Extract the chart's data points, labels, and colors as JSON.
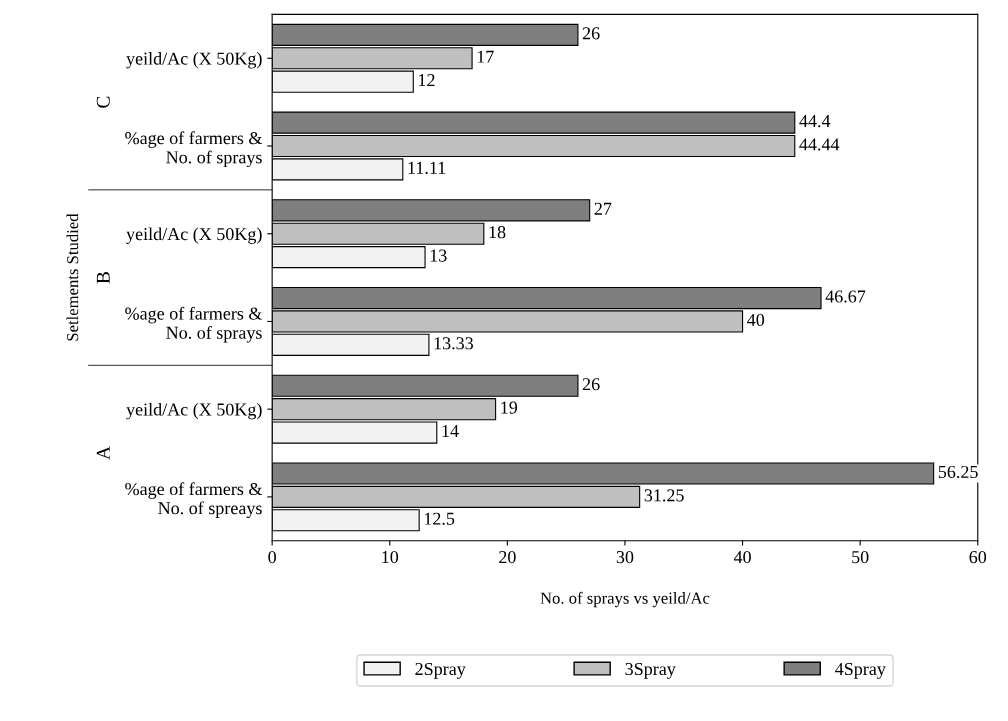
{
  "chart_data": {
    "type": "bar",
    "orientation": "horizontal",
    "xlabel": "No. of sprays vs yeild/Ac",
    "ylabel": "Setlements Studied",
    "categories": [
      "yeild/Ac (X 50Kg)",
      "%age of farmers &\nNo. of sprays",
      "yeild/Ac (X 50Kg)",
      "%age of farmers &\nNo. of sprays",
      "yeild/Ac (X 50Kg)",
      "%age of farmers &\nNo. of spreays"
    ],
    "annotations": [
      "C",
      "B",
      "A"
    ],
    "series": [
      {
        "name": "2Spray",
        "color": "#f2f2f2",
        "values": [
          12,
          11.11,
          13,
          13.33,
          14,
          12.5
        ],
        "value_labels": [
          "12",
          "11.11",
          "13",
          "13.33",
          "14",
          "12.5"
        ]
      },
      {
        "name": "3Spray",
        "color": "#bfbfbf",
        "values": [
          17,
          44.44,
          18,
          40,
          19,
          31.25
        ],
        "value_labels": [
          "17",
          "44.44",
          "18",
          "40",
          "19",
          "31.25"
        ]
      },
      {
        "name": "4Spray",
        "color": "#7f7f7f",
        "values": [
          26,
          44.44,
          27,
          46.67,
          26,
          56.25
        ],
        "value_labels": [
          "26",
          "44.4",
          "27",
          "46.67",
          "26",
          "56.25"
        ]
      }
    ],
    "xlim": [
      0,
      60
    ],
    "xticks": [
      0,
      10,
      20,
      30,
      40,
      50,
      60
    ],
    "grid": false,
    "legend": "bottom"
  }
}
